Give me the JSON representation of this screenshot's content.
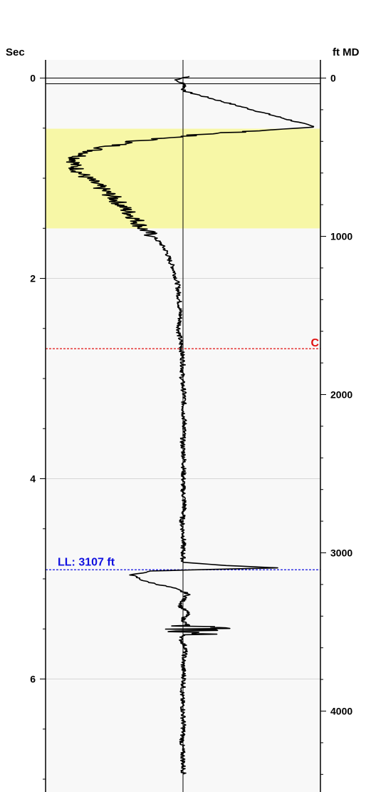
{
  "chart_data": {
    "type": "line",
    "title": "",
    "left_axis": {
      "label": "Sec",
      "range": [
        -0.1,
        7.15
      ],
      "major_ticks": [
        0,
        2,
        4,
        6
      ],
      "minor_ticks": [
        0.5,
        1,
        1.5,
        2.5,
        3,
        3.5,
        4.5,
        5,
        5.5,
        6.5,
        7
      ],
      "tick_labels": [
        "0",
        "2",
        "4",
        "6"
      ]
    },
    "right_axis": {
      "label": "ft MD",
      "range": [
        -18,
        4424
      ],
      "major_ticks": [
        0,
        1000,
        2000,
        3000,
        4000
      ],
      "minor_ticks": [
        200,
        400,
        600,
        800,
        1200,
        1400,
        1600,
        1800,
        2200,
        2400,
        2600,
        2800,
        3200,
        3400,
        3600,
        3800,
        4200,
        4400
      ],
      "tick_labels": [
        "0",
        "1000",
        "2000",
        "3000",
        "4000"
      ]
    },
    "grid": true,
    "zone": {
      "from_ft": 320,
      "to_ft": 950,
      "color": "#f7f7a6"
    },
    "markers": [
      {
        "label": "C",
        "depth_ft": 1710,
        "color": "#e01010",
        "style": "dashed"
      },
      {
        "label": "LL: 3107 ft",
        "depth_ft": 3107,
        "color": "#1010e0",
        "style": "dashed"
      }
    ],
    "trace": {
      "color": "#000000",
      "baseline": 0,
      "points": [
        [
          -10,
          0.12
        ],
        [
          0,
          0.0
        ],
        [
          15,
          -0.15
        ],
        [
          40,
          0.05
        ],
        [
          80,
          0.0
        ],
        [
          310,
          2.45
        ],
        [
          330,
          1.5
        ],
        [
          360,
          0.2
        ],
        [
          400,
          -0.9
        ],
        [
          450,
          -1.6
        ],
        [
          500,
          -1.95
        ],
        [
          550,
          -2.02
        ],
        [
          600,
          -1.9
        ],
        [
          650,
          -1.7
        ],
        [
          700,
          -1.5
        ],
        [
          750,
          -1.3
        ],
        [
          800,
          -1.15
        ],
        [
          850,
          -1.0
        ],
        [
          900,
          -0.85
        ],
        [
          950,
          -0.75
        ],
        [
          1000,
          -0.55
        ],
        [
          1050,
          -0.4
        ],
        [
          1100,
          -0.3
        ],
        [
          1150,
          -0.25
        ],
        [
          1200,
          -0.18
        ],
        [
          1300,
          -0.1
        ],
        [
          1400,
          -0.07
        ],
        [
          1500,
          -0.05
        ],
        [
          1600,
          -0.08
        ],
        [
          1700,
          -0.03
        ],
        [
          1800,
          0.0
        ],
        [
          1900,
          -0.02
        ],
        [
          2000,
          0.02
        ],
        [
          2100,
          0.01
        ],
        [
          2200,
          0.03
        ],
        [
          2300,
          -0.01
        ],
        [
          2400,
          0.02
        ],
        [
          2500,
          0.01
        ],
        [
          2600,
          0.0
        ],
        [
          2700,
          0.03
        ],
        [
          2800,
          -0.02
        ],
        [
          2900,
          0.01
        ],
        [
          3000,
          0.0
        ],
        [
          3060,
          0.0
        ],
        [
          3080,
          0.8
        ],
        [
          3095,
          1.75
        ],
        [
          3105,
          0.5
        ],
        [
          3115,
          -0.6
        ],
        [
          3140,
          -0.95
        ],
        [
          3180,
          -0.7
        ],
        [
          3220,
          -0.2
        ],
        [
          3260,
          0.1
        ],
        [
          3300,
          0.0
        ],
        [
          3340,
          -0.05
        ],
        [
          3380,
          0.1
        ],
        [
          3420,
          0.0
        ],
        [
          3450,
          0.05
        ],
        [
          3490,
          0.3
        ],
        [
          3510,
          0.1
        ],
        [
          3540,
          -0.05
        ],
        [
          3600,
          0.05
        ],
        [
          3700,
          0.0
        ],
        [
          3800,
          0.02
        ],
        [
          3900,
          -0.02
        ],
        [
          4000,
          0.0
        ],
        [
          4100,
          0.01
        ],
        [
          4200,
          -0.02
        ],
        [
          4300,
          0.0
        ],
        [
          4400,
          0.01
        ]
      ]
    }
  }
}
